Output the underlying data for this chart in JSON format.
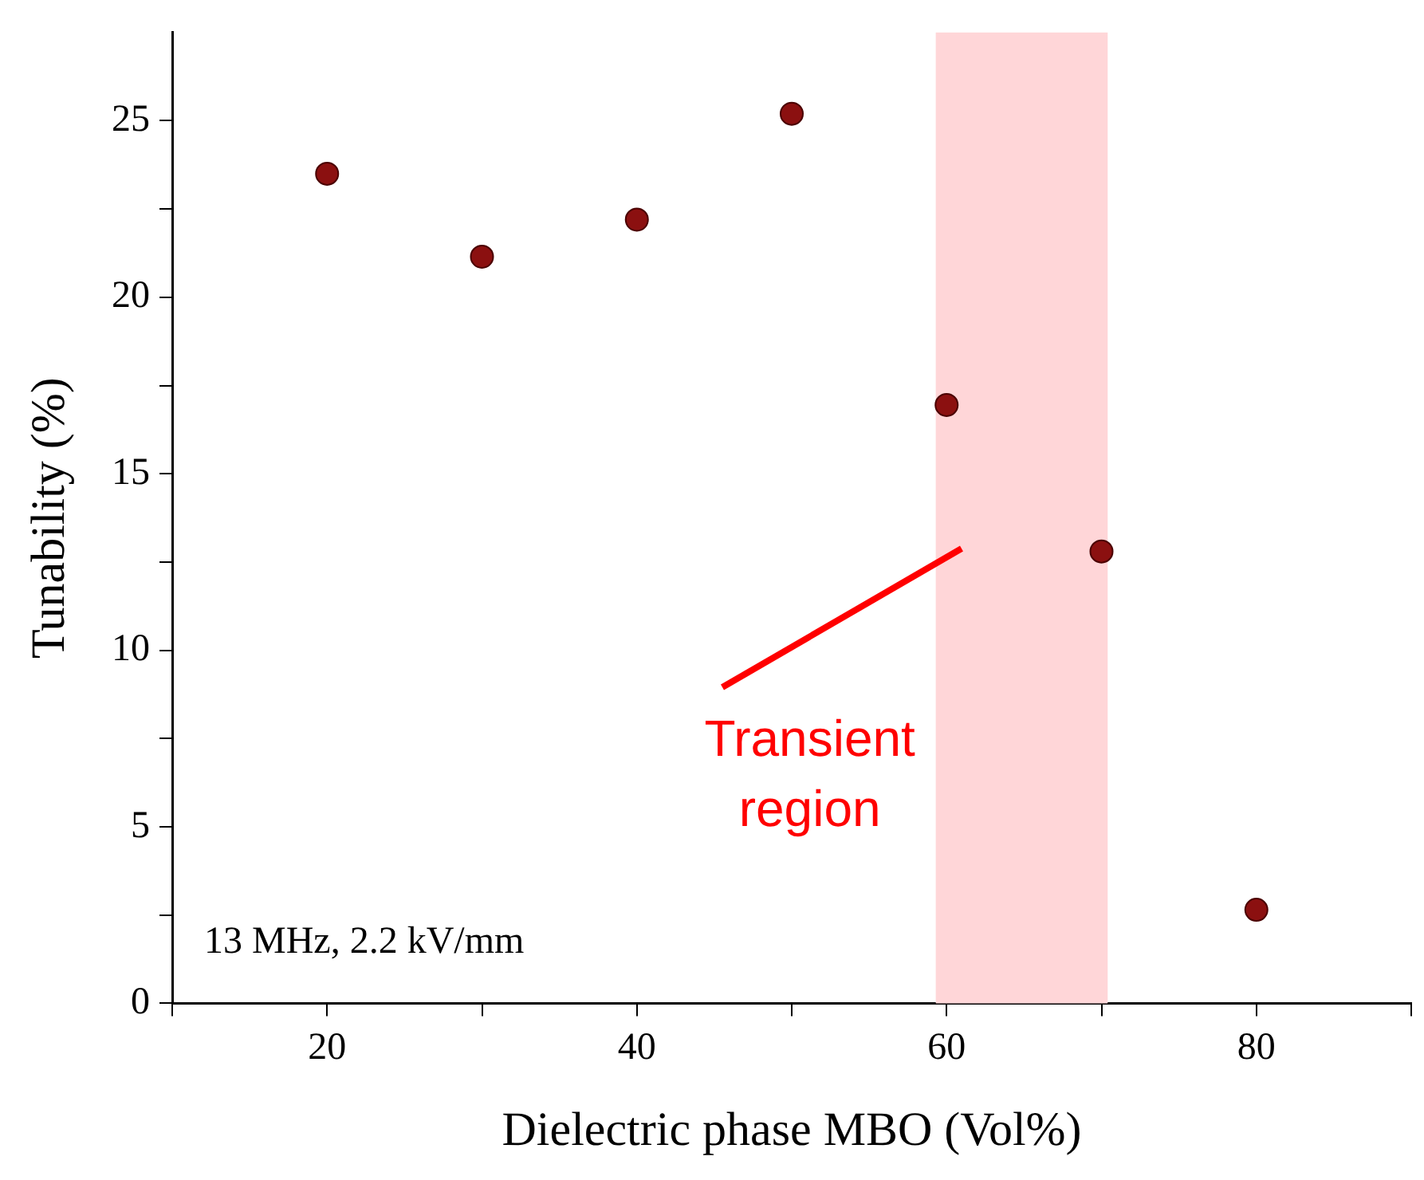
{
  "chart_data": {
    "type": "scatter",
    "xlabel": "Dielectric phase MBO (Vol%)",
    "ylabel": "Tunability (%)",
    "x": [
      20,
      30,
      40,
      50,
      60,
      70,
      80
    ],
    "series": [
      {
        "color": "#8b1010",
        "values": [
          23.5,
          21.15,
          22.2,
          25.2,
          16.95,
          12.8,
          2.65
        ]
      }
    ],
    "xlim": [
      10,
      90
    ],
    "xticks": [
      {
        "value": 10,
        "label": null
      },
      20,
      {
        "value": 30,
        "label": null
      },
      40,
      {
        "value": 50,
        "label": null
      },
      60,
      {
        "value": 70,
        "label": null
      },
      80,
      {
        "value": 90,
        "label": null
      }
    ],
    "ylim": [
      0,
      27.5
    ],
    "yticks": [
      0,
      {
        "value": 2.5,
        "label": null
      },
      5,
      {
        "value": 7.5,
        "label": null
      },
      10,
      {
        "value": 12.5,
        "label": null
      },
      15,
      {
        "value": 17.5,
        "label": null
      },
      20,
      {
        "value": 22.5,
        "label": null
      },
      25
    ],
    "bands": [
      {
        "axis": "x",
        "from": 59.3,
        "to": 70.4,
        "color": "#ffd6d8"
      }
    ],
    "annotations": [
      "Transient region",
      "13 MHz, 2.2 kV/mm"
    ],
    "marker": "circle",
    "grid": false,
    "legend": false
  }
}
